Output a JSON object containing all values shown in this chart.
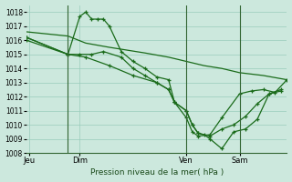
{
  "background_color": "#cce8dd",
  "grid_color": "#99ccbb",
  "line_color": "#1a6b1a",
  "vline_color": "#336633",
  "title": "Pression niveau de la mer( hPa )",
  "ylim": [
    1008,
    1018.5
  ],
  "yticks": [
    1008,
    1009,
    1010,
    1011,
    1012,
    1013,
    1014,
    1015,
    1016,
    1017,
    1018
  ],
  "xtick_labels": [
    "Jeu",
    "Dim",
    "Ven",
    "Sam"
  ],
  "xtick_positions": [
    0.5,
    9,
    27,
    36
  ],
  "vline_positions": [
    7,
    27,
    36
  ],
  "series_a_x": [
    0,
    7,
    10,
    14,
    17,
    20,
    24,
    27,
    30,
    33,
    36,
    40,
    44
  ],
  "series_a_y": [
    1016.6,
    1016.3,
    1015.8,
    1015.5,
    1015.3,
    1015.1,
    1014.8,
    1014.5,
    1014.2,
    1014.0,
    1013.7,
    1013.5,
    1013.2
  ],
  "series_b_x": [
    0,
    7,
    9,
    10,
    11,
    12,
    13,
    14,
    16,
    18,
    20,
    22,
    24,
    25,
    27,
    28,
    29,
    31,
    33,
    36,
    38,
    40,
    42,
    44
  ],
  "series_b_y": [
    1016.2,
    1015.0,
    1017.7,
    1018.0,
    1017.5,
    1017.5,
    1017.5,
    1017.0,
    1015.2,
    1014.5,
    1014.0,
    1013.4,
    1013.2,
    1011.6,
    1010.5,
    1009.5,
    1009.2,
    1009.3,
    1010.5,
    1012.2,
    1012.4,
    1012.5,
    1012.3,
    1013.2
  ],
  "series_c_x": [
    0,
    7,
    9,
    11,
    13,
    16,
    18,
    20,
    22,
    24,
    25,
    27,
    28,
    29,
    31,
    33,
    35,
    37,
    39,
    41,
    43
  ],
  "series_c_y": [
    1016.0,
    1015.0,
    1015.0,
    1015.0,
    1015.2,
    1014.8,
    1014.0,
    1013.5,
    1013.0,
    1012.5,
    1011.6,
    1011.0,
    1010.0,
    1009.4,
    1009.2,
    1009.7,
    1010.0,
    1010.6,
    1011.5,
    1012.2,
    1012.4
  ],
  "series_d_x": [
    0,
    7,
    10,
    14,
    18,
    22,
    24,
    25,
    27,
    28,
    29,
    30,
    31,
    33,
    35,
    37,
    39,
    41,
    43
  ],
  "series_d_y": [
    1016.2,
    1015.0,
    1014.8,
    1014.2,
    1013.5,
    1013.0,
    1012.5,
    1011.6,
    1011.0,
    1010.0,
    1009.4,
    1009.3,
    1009.0,
    1008.3,
    1009.5,
    1009.7,
    1010.4,
    1012.2,
    1012.5
  ]
}
